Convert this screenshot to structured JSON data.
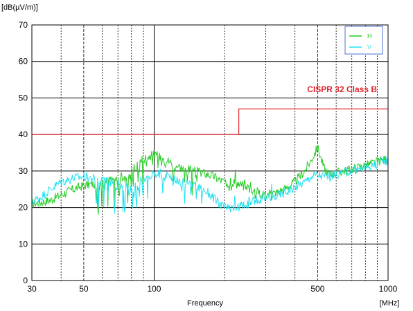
{
  "chart_data": {
    "type": "line",
    "title": "",
    "xlabel": "Frequency",
    "xunit": "[MHz]",
    "ylabel": "[dB(µV/m)]",
    "xscale": "log",
    "xlim": [
      30,
      1000
    ],
    "ylim": [
      0,
      70
    ],
    "xticks": [
      30,
      50,
      100,
      500,
      1000
    ],
    "yticks": [
      0,
      10,
      20,
      30,
      40,
      50,
      60,
      70
    ],
    "grid": true,
    "legend_position": "top-right",
    "limit_line": {
      "name": "CISPR 32 Class B",
      "color": "#e0222a",
      "points": [
        [
          30,
          40
        ],
        [
          230,
          40
        ],
        [
          230,
          47
        ],
        [
          1000,
          47
        ]
      ]
    },
    "series": [
      {
        "name": "H",
        "color": "#22cc22",
        "points": [
          [
            30,
            21
          ],
          [
            33,
            21.5
          ],
          [
            36,
            22
          ],
          [
            40,
            23.5
          ],
          [
            45,
            25
          ],
          [
            50,
            26
          ],
          [
            55,
            26.5
          ],
          [
            60,
            27
          ],
          [
            65,
            27.5
          ],
          [
            70,
            28
          ],
          [
            75,
            28.5
          ],
          [
            80,
            30
          ],
          [
            85,
            32
          ],
          [
            90,
            33.5
          ],
          [
            95,
            34
          ],
          [
            100,
            34.5
          ],
          [
            110,
            33.5
          ],
          [
            120,
            32
          ],
          [
            130,
            31
          ],
          [
            140,
            30.5
          ],
          [
            150,
            30
          ],
          [
            160,
            29.5
          ],
          [
            170,
            29
          ],
          [
            180,
            28.5
          ],
          [
            190,
            27.5
          ],
          [
            200,
            27
          ],
          [
            210,
            26.5
          ],
          [
            220,
            27
          ],
          [
            240,
            26
          ],
          [
            260,
            25
          ],
          [
            280,
            24
          ],
          [
            300,
            23.5
          ],
          [
            330,
            24
          ],
          [
            360,
            25
          ],
          [
            400,
            27
          ],
          [
            440,
            30
          ],
          [
            470,
            33
          ],
          [
            500,
            36.5
          ],
          [
            530,
            31
          ],
          [
            560,
            29
          ],
          [
            600,
            29.5
          ],
          [
            700,
            30.5
          ],
          [
            800,
            31.5
          ],
          [
            900,
            32.5
          ],
          [
            1000,
            33.5
          ]
        ]
      },
      {
        "name": "V",
        "color": "#22e0f0",
        "points": [
          [
            30,
            21.5
          ],
          [
            33,
            23
          ],
          [
            36,
            25
          ],
          [
            40,
            27
          ],
          [
            45,
            28
          ],
          [
            50,
            28.5
          ],
          [
            55,
            28
          ],
          [
            60,
            27.5
          ],
          [
            65,
            27
          ],
          [
            70,
            26.5
          ],
          [
            75,
            26
          ],
          [
            80,
            25
          ],
          [
            85,
            26
          ],
          [
            90,
            28
          ],
          [
            95,
            29
          ],
          [
            100,
            29.5
          ],
          [
            110,
            29
          ],
          [
            120,
            28
          ],
          [
            130,
            27
          ],
          [
            140,
            26.5
          ],
          [
            150,
            26
          ],
          [
            160,
            25
          ],
          [
            170,
            24
          ],
          [
            180,
            22.5
          ],
          [
            190,
            21
          ],
          [
            200,
            20
          ],
          [
            210,
            19.5
          ],
          [
            220,
            20
          ],
          [
            240,
            20.5
          ],
          [
            260,
            21.5
          ],
          [
            280,
            22
          ],
          [
            300,
            22.5
          ],
          [
            330,
            23
          ],
          [
            360,
            24
          ],
          [
            400,
            25.5
          ],
          [
            440,
            27
          ],
          [
            470,
            28.5
          ],
          [
            500,
            29
          ],
          [
            530,
            28.5
          ],
          [
            560,
            28.5
          ],
          [
            600,
            29
          ],
          [
            700,
            30
          ],
          [
            800,
            31
          ],
          [
            900,
            32
          ],
          [
            1000,
            33
          ]
        ]
      }
    ]
  },
  "legend": {
    "items": [
      {
        "label": "H",
        "color": "#22cc22"
      },
      {
        "label": "V",
        "color": "#22e0f0"
      }
    ]
  }
}
